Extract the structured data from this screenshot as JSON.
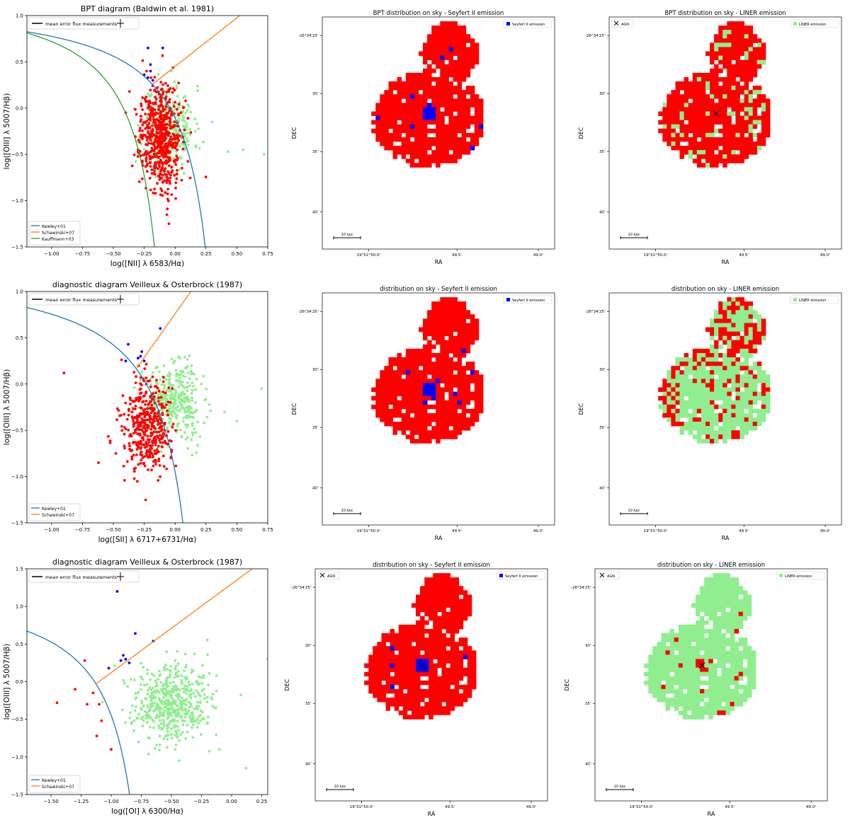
{
  "colors": {
    "seyfert": "#0000ff",
    "liner": "#90ee90",
    "other": "#ff0000",
    "kewley": "#1f77b4",
    "schawinski": "#ff7f0e",
    "kauffmann": "#2ca02c",
    "axis": "#000000"
  },
  "chart_data": [
    {
      "type": "scatter",
      "title": "BPT diagram (Baldwin et al. 1981)",
      "xlabel": "log([NII] λ 6583/Hα)",
      "ylabel": "log([OIII] λ 5007/Hβ)",
      "xlim": [
        -1.2,
        0.75
      ],
      "ylim": [
        -1.5,
        1.0
      ],
      "xticks": [
        -1.0,
        -0.75,
        -0.5,
        -0.25,
        0.0,
        0.25,
        0.5,
        0.75
      ],
      "xtick_labels": [
        "−1.00",
        "−0.75",
        "−0.50",
        "−0.25",
        "0.00",
        "0.25",
        "0.50",
        "0.75"
      ],
      "yticks": [
        -1.5,
        -1.0,
        -0.5,
        0.0,
        0.5,
        1.0
      ],
      "ytick_labels": [
        "−1.5",
        "−1.0",
        "−0.5",
        "0.0",
        "0.5",
        "1.0"
      ],
      "error_legend": "mean error flux measurements",
      "legend": [
        "Kewley+01",
        "Schawinski+07",
        "Kauffmann+03"
      ],
      "series": [
        {
          "name": "Seyfert II",
          "color": "blue",
          "points": [
            [
              -0.22,
              0.65
            ],
            [
              -0.1,
              0.65
            ],
            [
              -0.2,
              0.47
            ],
            [
              -0.25,
              0.36
            ],
            [
              -0.22,
              0.33
            ],
            [
              -0.18,
              0.3
            ],
            [
              -0.2,
              0.4
            ]
          ]
        },
        {
          "name": "LINER",
          "color": "lightgreen",
          "cluster": {
            "cx": -0.05,
            "cy": -0.2,
            "sx": 0.1,
            "sy": 0.22,
            "n": 320
          },
          "points": [
            [
              0.43,
              -0.47
            ],
            [
              0.55,
              -0.45
            ],
            [
              0.72,
              -0.5
            ],
            [
              0.3,
              -0.15
            ]
          ]
        },
        {
          "name": "other",
          "color": "red",
          "cluster": {
            "cx": -0.12,
            "cy": -0.3,
            "sx": 0.08,
            "sy": 0.28,
            "n": 600
          },
          "points": [
            [
              -0.37,
              0.18
            ],
            [
              -0.4,
              -0.05
            ],
            [
              -0.3,
              -0.45
            ],
            [
              -0.05,
              -1.25
            ]
          ]
        }
      ]
    },
    {
      "type": "scatter",
      "title": "diagnostic diagram Veilleux & Osterbrock (1987)",
      "xlabel": "log([SII] λ 6717+6731/Hα)",
      "ylabel": "log([OIII] λ 5007/Hβ)",
      "xlim": [
        -1.2,
        0.75
      ],
      "ylim": [
        -1.5,
        1.0
      ],
      "xticks": [
        -1.0,
        -0.75,
        -0.5,
        -0.25,
        0.0,
        0.25,
        0.5,
        0.75
      ],
      "xtick_labels": [
        "−1.00",
        "−0.75",
        "−0.50",
        "−0.25",
        "0.00",
        "0.25",
        "0.50",
        "0.75"
      ],
      "yticks": [
        -1.5,
        -1.0,
        -0.5,
        0.0,
        0.5,
        1.0
      ],
      "ytick_labels": [
        "−1.5",
        "−1.0",
        "−0.5",
        "0.0",
        "0.5",
        "1.0"
      ],
      "error_legend": "mean error flux measurements",
      "legend": [
        "Kewley+01",
        "Schawinski+07"
      ],
      "series": [
        {
          "name": "Seyfert II",
          "color": "blue",
          "points": [
            [
              -0.38,
              0.43
            ],
            [
              -0.28,
              0.3
            ],
            [
              -0.27,
              0.35
            ],
            [
              -0.3,
              0.28
            ],
            [
              -0.25,
              0.25
            ],
            [
              -0.4,
              0.25
            ],
            [
              -0.12,
              0.6
            ]
          ]
        },
        {
          "name": "LINER",
          "color": "lightgreen",
          "cluster": {
            "cx": -0.02,
            "cy": -0.2,
            "sx": 0.12,
            "sy": 0.2,
            "n": 380
          },
          "points": [
            [
              0.5,
              -0.4
            ],
            [
              0.7,
              -0.05
            ],
            [
              0.4,
              -0.3
            ]
          ]
        },
        {
          "name": "other",
          "color": "red",
          "cluster": {
            "cx": -0.22,
            "cy": -0.45,
            "sx": 0.09,
            "sy": 0.25,
            "n": 420
          },
          "points": [
            [
              -0.9,
              0.12
            ],
            [
              -0.62,
              -0.85
            ],
            [
              -0.48,
              -0.75
            ]
          ]
        }
      ]
    },
    {
      "type": "scatter",
      "title": "diagnostic diagram Veilleux & Osterbrock (1987)",
      "xlabel": "log([OI] λ 6300/Hα)",
      "ylabel": "log([OIII] λ 5007/Hβ)",
      "xlim": [
        -1.7,
        0.3
      ],
      "ylim": [
        -1.5,
        1.5
      ],
      "xticks": [
        -1.5,
        -1.25,
        -1.0,
        -0.75,
        -0.5,
        -0.25,
        0.0,
        0.25
      ],
      "xtick_labels": [
        "−1.50",
        "−1.25",
        "−1.00",
        "−0.75",
        "−0.50",
        "−0.25",
        "0.00",
        "0.25"
      ],
      "yticks": [
        -1.5,
        -1.0,
        -0.5,
        0.0,
        0.5,
        1.0,
        1.5
      ],
      "ytick_labels": [
        "−1.5",
        "−1.0",
        "−0.5",
        "0.0",
        "0.5",
        "1.0",
        "1.5"
      ],
      "error_legend": "mean error flux measurements",
      "legend": [
        "Kewley+01",
        "Schawinski+07"
      ],
      "series": [
        {
          "name": "Seyfert II",
          "color": "blue",
          "points": [
            [
              -0.95,
              1.2
            ],
            [
              -0.8,
              0.64
            ],
            [
              -0.65,
              0.54
            ],
            [
              -1.02,
              0.18
            ],
            [
              -0.9,
              0.35
            ],
            [
              -0.88,
              0.3
            ],
            [
              -0.85,
              0.25
            ],
            [
              -0.92,
              0.28
            ]
          ]
        },
        {
          "name": "LINER",
          "color": "lightgreen",
          "cluster": {
            "cx": -0.5,
            "cy": -0.28,
            "sx": 0.16,
            "sy": 0.25,
            "n": 520
          },
          "points": [
            [
              0.3,
              0.3
            ],
            [
              0.12,
              -1.15
            ],
            [
              -0.1,
              -0.9
            ]
          ]
        },
        {
          "name": "other",
          "color": "red",
          "points": [
            [
              -1.22,
              0.28
            ],
            [
              -1.3,
              -0.1
            ],
            [
              -1.45,
              -0.28
            ],
            [
              -1.2,
              -0.3
            ],
            [
              -1.1,
              -0.3
            ],
            [
              -1.12,
              -0.72
            ],
            [
              -1.0,
              -0.9
            ],
            [
              -1.08,
              -0.52
            ],
            [
              -1.15,
              -0.15
            ]
          ]
        }
      ]
    },
    {
      "type": "map",
      "title": "BPT distribution on sky - Seyfert II emission",
      "legend": "Seyfert II emission",
      "highlight": "blue",
      "mode": "seyfert",
      "agn": false
    },
    {
      "type": "map",
      "title": "BPT distribution on sky - LINER emission",
      "legend": "LINER emission",
      "highlight": "lightgreen",
      "mode": "liner_low",
      "agn": true
    },
    {
      "type": "map",
      "title": "distribution on sky - Seyfert II emission",
      "legend": "Seyfert II emission",
      "highlight": "blue",
      "mode": "seyfert",
      "agn": false
    },
    {
      "type": "map",
      "title": "distribution on sky - LINER emission",
      "legend": "LINER emission",
      "highlight": "lightgreen",
      "mode": "liner_high",
      "agn": false
    },
    {
      "type": "map",
      "title": "distribution on sky - Seyfert II emission",
      "legend": "Seyfert II emission",
      "highlight": "blue",
      "mode": "seyfert",
      "agn": true
    },
    {
      "type": "map",
      "title": "distribution on sky - LINER emission",
      "legend": "LINER emission",
      "highlight": "lightgreen",
      "mode": "liner_all",
      "agn": true
    }
  ],
  "sky": {
    "xlabel": "RA",
    "ylabel": "DEC",
    "xtick_labels": [
      "19ʰ31ᵐ50.0ˢ",
      "49.5ˢ",
      "49.0ˢ"
    ],
    "ytick_labels": [
      "-26°34′25″",
      "30″",
      "35″",
      "40″"
    ],
    "agn_label": "AGN",
    "scale_label": "10 kpc"
  }
}
